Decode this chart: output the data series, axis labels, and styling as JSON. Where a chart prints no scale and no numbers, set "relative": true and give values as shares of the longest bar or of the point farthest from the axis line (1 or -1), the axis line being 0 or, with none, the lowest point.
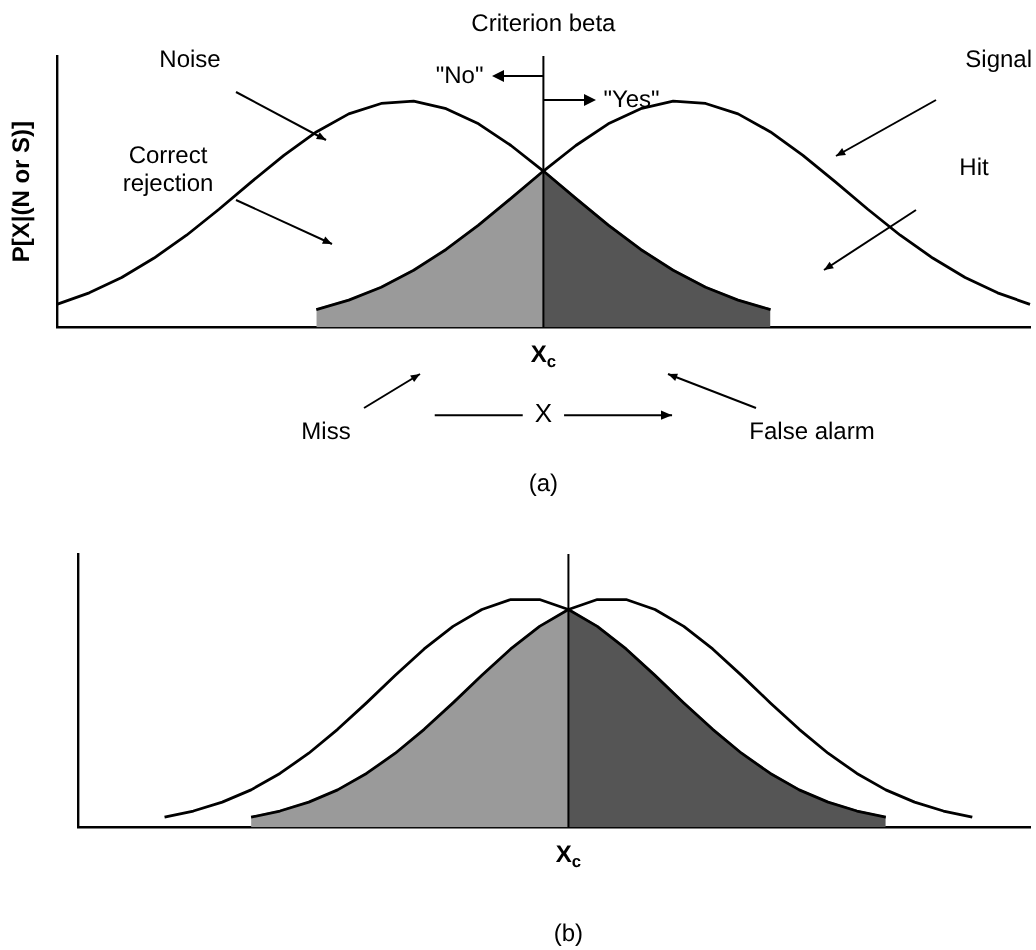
{
  "chart_data": [
    {
      "type": "line",
      "relative": true,
      "grid": false,
      "legend": false,
      "marker": "none",
      "ylabel": "P[X|(N or S)]",
      "xlabel": "X",
      "categories": [
        null,
        null,
        null,
        null,
        null,
        null,
        null,
        null,
        null,
        null,
        null,
        null,
        null,
        null,
        null,
        null,
        null,
        null,
        null,
        null,
        null,
        null,
        null,
        null,
        null,
        null,
        null,
        null,
        null,
        null,
        null
      ],
      "series": [
        {
          "color": "#000000",
          "values": [
            0.101,
            0.152,
            0.22,
            0.306,
            0.407,
            0.522,
            0.643,
            0.76,
            0.864,
            0.944,
            0.99,
            1.0,
            0.967,
            0.9,
            0.804,
            0.691,
            0.57,
            0.452,
            0.344,
            0.252,
            0.177,
            0.12,
            0.078,
            null,
            null,
            null,
            null,
            null,
            null,
            null,
            null
          ]
        },
        {
          "color": "#000000",
          "values": [
            null,
            null,
            null,
            null,
            null,
            null,
            null,
            null,
            0.078,
            0.12,
            0.177,
            0.252,
            0.344,
            0.452,
            0.57,
            0.691,
            0.804,
            0.9,
            0.967,
            1.0,
            0.99,
            0.944,
            0.864,
            0.76,
            0.643,
            0.522,
            0.407,
            0.306,
            0.22,
            0.152,
            0.101
          ]
        },
        {
          "type": "area",
          "color": "#9a9a9a",
          "values": [
            null,
            null,
            null,
            null,
            null,
            null,
            null,
            null,
            0.078,
            0.12,
            0.177,
            0.252,
            0.344,
            0.452,
            0.57,
            0.691,
            null,
            null,
            null,
            null,
            null,
            null,
            null,
            null,
            null,
            null,
            null,
            null,
            null,
            null,
            null
          ]
        },
        {
          "type": "area",
          "color": "#555555",
          "values": [
            null,
            null,
            null,
            null,
            null,
            null,
            null,
            null,
            null,
            null,
            null,
            null,
            null,
            null,
            null,
            0.691,
            0.57,
            0.452,
            0.344,
            0.252,
            0.177,
            0.12,
            0.078,
            null,
            null,
            null,
            null,
            null,
            null,
            null,
            null
          ]
        }
      ],
      "annotations": [
        "Criterion beta",
        "\"No\"",
        "\"Yes\"",
        "Noise",
        "Correct rejection",
        "Signal",
        "Hit",
        "X$_{c}$",
        "Miss",
        "False alarm",
        "(a)"
      ]
    },
    {
      "type": "line",
      "relative": true,
      "grid": false,
      "legend": false,
      "marker": "none",
      "categories": [
        null,
        null,
        null,
        null,
        null,
        null,
        null,
        null,
        null,
        null,
        null,
        null,
        null,
        null,
        null,
        null,
        null,
        null,
        null,
        null,
        null,
        null,
        null,
        null,
        null,
        null,
        null,
        null,
        null,
        null,
        null,
        null,
        null,
        null
      ],
      "series": [
        {
          "color": "#000000",
          "values": [
            null,
            null,
            null,
            0.044,
            0.071,
            0.11,
            0.164,
            0.236,
            0.325,
            0.43,
            0.546,
            0.667,
            0.783,
            0.882,
            0.956,
            1.0,
            1.0,
            0.956,
            0.882,
            0.783,
            0.667,
            0.546,
            0.43,
            0.325,
            0.236,
            0.164,
            0.11,
            0.071,
            0.044,
            null,
            null,
            null,
            null,
            null
          ]
        },
        {
          "color": "#000000",
          "values": [
            null,
            null,
            null,
            null,
            null,
            null,
            0.044,
            0.071,
            0.11,
            0.164,
            0.236,
            0.325,
            0.43,
            0.546,
            0.667,
            0.783,
            0.882,
            0.956,
            1.0,
            1.0,
            0.956,
            0.882,
            0.783,
            0.667,
            0.546,
            0.43,
            0.325,
            0.236,
            0.164,
            0.11,
            0.071,
            0.044,
            null,
            null
          ]
        },
        {
          "type": "area",
          "color": "#9a9a9a",
          "values": [
            null,
            null,
            null,
            null,
            null,
            null,
            0.044,
            0.071,
            0.11,
            0.164,
            0.236,
            0.325,
            0.43,
            0.546,
            0.667,
            0.783,
            0.882,
            0.956,
            null,
            null,
            null,
            null,
            null,
            null,
            null,
            null,
            null,
            null,
            null,
            null,
            null,
            null,
            null,
            null
          ]
        },
        {
          "type": "area",
          "color": "#555555",
          "values": [
            null,
            null,
            null,
            null,
            null,
            null,
            null,
            null,
            null,
            null,
            null,
            null,
            null,
            null,
            null,
            null,
            null,
            0.956,
            0.882,
            0.783,
            0.667,
            0.546,
            0.43,
            0.325,
            0.236,
            0.164,
            0.11,
            0.071,
            0.044,
            null,
            null,
            null,
            null,
            null
          ]
        }
      ],
      "annotations": [
        "X$_{c}$",
        "(b)"
      ]
    }
  ]
}
